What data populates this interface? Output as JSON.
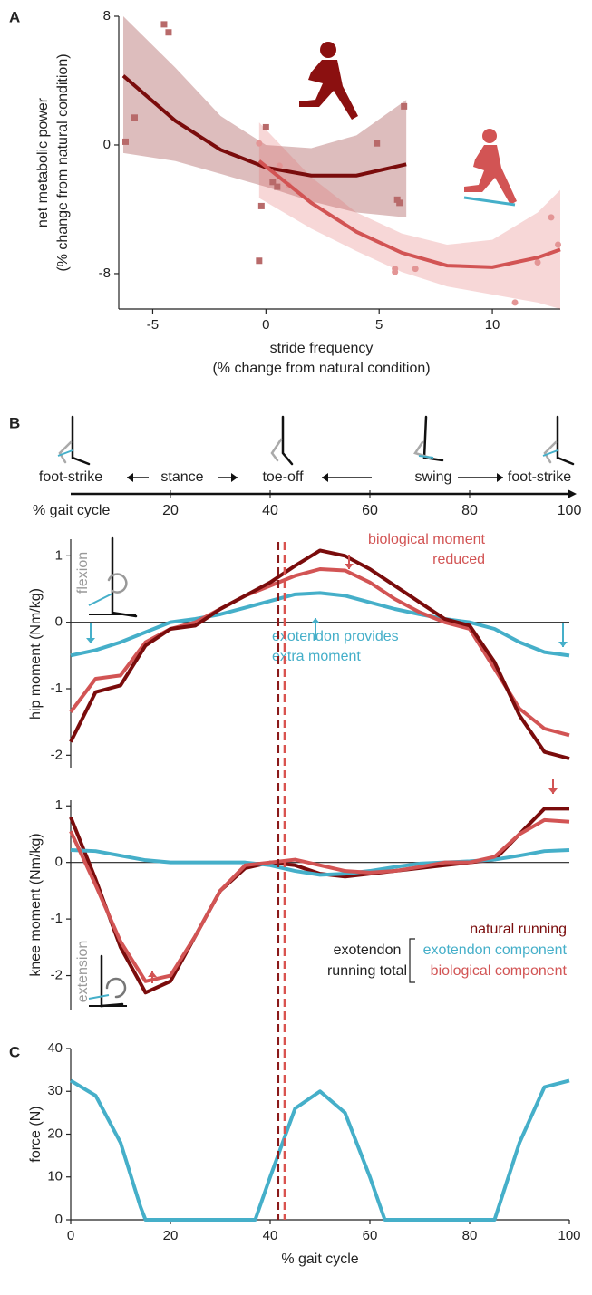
{
  "gait_cycle": {
    "labels": [
      "foot-strike",
      "stance",
      "toe-off",
      "swing",
      "foot-strike"
    ],
    "axis_label": "% gait cycle",
    "ticks": [
      20,
      40,
      60,
      80,
      100
    ]
  },
  "chart_data": [
    {
      "type": "scatter",
      "panel": "A",
      "xlabel": [
        "stride frequency",
        "(% change from natural condition)"
      ],
      "ylabel": [
        "net metabolic power",
        "(% change from natural condition)"
      ],
      "xlim": [
        -6.5,
        13
      ],
      "ylim": [
        -10.2,
        8
      ],
      "xticks": [
        -5,
        0,
        5,
        10
      ],
      "yticks": [
        -8,
        0,
        8
      ],
      "series": [
        {
          "marker": "square",
          "color": "#b86a6a",
          "x": [
            -6.2,
            -5.8,
            -4.5,
            -4.3,
            -0.3,
            -0.2,
            0,
            0.3,
            0.5,
            4.9,
            5.8,
            5.9,
            6.1
          ],
          "values": [
            0.2,
            1.7,
            7.5,
            7,
            -7.2,
            -3.8,
            1.1,
            -2.3,
            -2.6,
            0.1,
            -3.4,
            -3.6,
            2.4
          ]
        },
        {
          "marker": "circle",
          "color": "#e39595",
          "x": [
            -0.3,
            0.6,
            1,
            5.7,
            5.7,
            6.6,
            11,
            12,
            12.6,
            12.9
          ],
          "values": [
            0.1,
            -1.3,
            -2.5,
            -7.7,
            -7.9,
            -7.7,
            -9.8,
            -7.3,
            -4.5,
            -6.2
          ]
        }
      ],
      "fits": [
        {
          "color": "#7a0c0c",
          "band_color": "rgba(150,50,50,0.32)",
          "x": [
            -6.3,
            -4,
            -2,
            0,
            2,
            4,
            6.2
          ],
          "values": [
            4.3,
            1.5,
            -0.3,
            -1.4,
            -1.9,
            -1.9,
            -1.2
          ],
          "lower": [
            -0.5,
            -1,
            -1.8,
            -2.6,
            -3.5,
            -4.2,
            -4.5
          ],
          "upper": [
            8,
            4.8,
            1.8,
            0,
            -0.2,
            0.6,
            2.8
          ]
        },
        {
          "color": "#d25454",
          "band_color": "rgba(225,110,110,0.28)",
          "x": [
            -0.3,
            2,
            4,
            6,
            8,
            10,
            12,
            13
          ],
          "values": [
            -1,
            -3.6,
            -5.4,
            -6.7,
            -7.5,
            -7.6,
            -7,
            -6.5
          ],
          "lower": [
            -3.3,
            -5.2,
            -6.6,
            -7.9,
            -8.8,
            -9.3,
            -9.8,
            -10.2
          ],
          "upper": [
            1.4,
            -2,
            -4.2,
            -5.5,
            -6.2,
            -5.9,
            -4.2,
            -2.8
          ]
        }
      ]
    },
    {
      "type": "line",
      "panel": "B",
      "ylabel": "hip moment (Nm/kg)",
      "xlim": [
        0,
        100
      ],
      "ylim": [
        -2.2,
        1.25
      ],
      "yticks": [
        -2,
        -1,
        0,
        1
      ],
      "x": [
        0,
        5,
        10,
        15,
        20,
        25,
        30,
        35,
        40,
        45,
        50,
        55,
        60,
        65,
        70,
        75,
        80,
        85,
        90,
        95,
        100
      ],
      "series": [
        {
          "color": "#45afc9",
          "values": [
            -0.5,
            -0.42,
            -0.3,
            -0.15,
            0,
            0.05,
            0.12,
            0.22,
            0.32,
            0.42,
            0.44,
            0.4,
            0.3,
            0.2,
            0.12,
            0.05,
            0,
            -0.1,
            -0.3,
            -0.45,
            -0.5
          ]
        },
        {
          "color": "#d25454",
          "values": [
            -1.35,
            -0.85,
            -0.8,
            -0.3,
            -0.1,
            0,
            0.2,
            0.4,
            0.55,
            0.7,
            0.8,
            0.78,
            0.6,
            0.35,
            0.15,
            0,
            -0.1,
            -0.7,
            -1.3,
            -1.6,
            -1.7
          ]
        },
        {
          "color": "#7a0c0c",
          "values": [
            -1.8,
            -1.05,
            -0.95,
            -0.35,
            -0.1,
            -0.05,
            0.2,
            0.4,
            0.6,
            0.85,
            1.08,
            1,
            0.8,
            0.55,
            0.3,
            0.05,
            -0.05,
            -0.6,
            -1.4,
            -1.95,
            -2.05
          ]
        }
      ],
      "annotations": [
        {
          "lines": [
            "biological moment",
            "reduced"
          ],
          "color": "#d25454"
        },
        {
          "lines": [
            "exotendon provides",
            "extra moment"
          ],
          "color": "#45afc9"
        },
        {
          "lines": [
            "flexion"
          ],
          "color": "#999999"
        }
      ]
    },
    {
      "type": "line",
      "panel": "B",
      "ylabel": "knee moment (Nm/kg)",
      "xlim": [
        0,
        100
      ],
      "ylim": [
        -2.6,
        1.1
      ],
      "yticks": [
        -2,
        -1,
        0,
        1
      ],
      "x": [
        0,
        5,
        10,
        15,
        20,
        25,
        30,
        35,
        40,
        45,
        50,
        55,
        60,
        65,
        70,
        75,
        80,
        85,
        90,
        95,
        100
      ],
      "series": [
        {
          "name": "natural running",
          "color": "#7a0c0c",
          "values": [
            0.8,
            -0.3,
            -1.5,
            -2.3,
            -2.1,
            -1.3,
            -0.5,
            -0.1,
            0,
            -0.05,
            -0.2,
            -0.25,
            -0.2,
            -0.15,
            -0.1,
            -0.05,
            0,
            0.05,
            0.5,
            0.95,
            0.95
          ]
        },
        {
          "name": "exotendon component",
          "color": "#45afc9",
          "values": [
            0.22,
            0.2,
            0.12,
            0.04,
            0,
            0,
            0,
            0,
            -0.05,
            -0.15,
            -0.22,
            -0.2,
            -0.15,
            -0.08,
            -0.02,
            0,
            0.02,
            0.05,
            0.12,
            0.2,
            0.22
          ]
        },
        {
          "name": "biological component",
          "color": "#d25454",
          "values": [
            0.55,
            -0.4,
            -1.4,
            -2.1,
            -2,
            -1.3,
            -0.5,
            -0.05,
            0,
            0.05,
            -0.05,
            -0.15,
            -0.18,
            -0.15,
            -0.08,
            0,
            0,
            0.1,
            0.5,
            0.75,
            0.72
          ]
        }
      ],
      "legend_title": [
        "exotendon",
        "running total"
      ],
      "annotations": [
        {
          "lines": [
            "extension"
          ],
          "color": "#999999"
        }
      ]
    },
    {
      "type": "line",
      "panel": "C",
      "xlabel": "% gait cycle",
      "ylabel": "force (N)",
      "xlim": [
        0,
        100
      ],
      "ylim": [
        0,
        40
      ],
      "xticks": [
        0,
        20,
        40,
        60,
        80,
        100
      ],
      "yticks": [
        0,
        10,
        20,
        30,
        40
      ],
      "x": [
        0,
        5,
        10,
        14,
        15,
        20,
        35,
        37,
        40,
        45,
        50,
        55,
        60,
        63,
        85,
        90,
        95,
        100
      ],
      "series": [
        {
          "color": "#45afc9",
          "values": [
            32.5,
            29,
            18,
            3,
            0,
            0,
            0,
            0,
            10,
            26,
            30,
            25,
            10,
            0,
            0,
            18,
            31,
            32.5
          ]
        }
      ],
      "vlines": [
        {
          "value": 41.6,
          "color": "#8b1a1a"
        },
        {
          "value": 42.9,
          "color": "#d9534f"
        }
      ]
    }
  ]
}
